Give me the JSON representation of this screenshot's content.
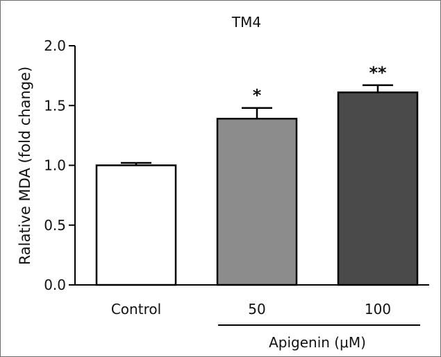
{
  "chart_data": {
    "type": "bar",
    "title": "TM4",
    "ylabel": "Ralative MDA (fold change)",
    "xlabel": "",
    "ylim": [
      0,
      2.0
    ],
    "yticks": [
      "0.0",
      "0.5",
      "1.0",
      "1.5",
      "2.0"
    ],
    "categories": [
      "Control",
      "50",
      "100"
    ],
    "values": [
      1.0,
      1.39,
      1.61
    ],
    "errors": [
      0.02,
      0.09,
      0.06
    ],
    "significance": [
      "",
      "*",
      "**"
    ],
    "bar_colors": [
      "#ffffff",
      "#8c8c8c",
      "#4a4a4a"
    ],
    "group_label": "Apigenin (μM)",
    "grid": false
  }
}
